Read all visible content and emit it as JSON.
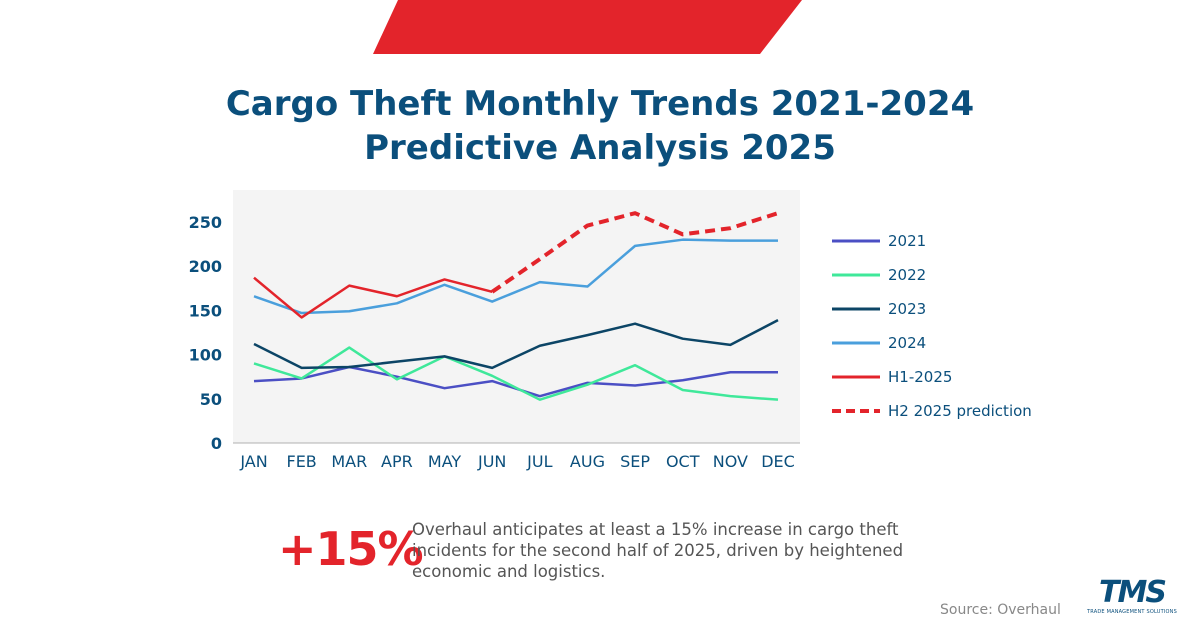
{
  "brand": {
    "accent": "#e3242b",
    "primary": "#0b4f7c"
  },
  "title_line1": "Cargo Theft Monthly Trends 2021-2024",
  "title_line2": "Predictive Analysis 2025",
  "chart_data": {
    "type": "line",
    "title": "Cargo Theft Monthly Trends 2021-2024 Predictive Analysis 2025",
    "xlabel": "",
    "ylabel": "",
    "categories": [
      "JAN",
      "FEB",
      "MAR",
      "APR",
      "MAY",
      "JUN",
      "JUL",
      "AUG",
      "SEP",
      "OCT",
      "NOV",
      "DEC"
    ],
    "yticks": [
      0,
      50,
      100,
      150,
      200,
      250
    ],
    "ylim": [
      0,
      250
    ],
    "grid": false,
    "legend_position": "right",
    "series": [
      {
        "name": "2021",
        "color": "#4b4fc4",
        "dashed": false,
        "values": [
          70,
          73,
          86,
          75,
          62,
          70,
          53,
          68,
          65,
          71,
          80,
          80
        ]
      },
      {
        "name": "2022",
        "color": "#3fe89a",
        "dashed": false,
        "values": [
          90,
          73,
          108,
          72,
          98,
          76,
          49,
          66,
          88,
          60,
          53,
          49
        ]
      },
      {
        "name": "2023",
        "color": "#0c4566",
        "dashed": false,
        "values": [
          112,
          85,
          86,
          92,
          98,
          85,
          110,
          122,
          135,
          118,
          111,
          139
        ]
      },
      {
        "name": "2024",
        "color": "#4a9fdc",
        "dashed": false,
        "values": [
          166,
          147,
          149,
          158,
          179,
          160,
          182,
          177,
          223,
          230,
          229,
          229
        ]
      },
      {
        "name": "H1-2025",
        "color": "#e3242b",
        "dashed": false,
        "values": [
          187,
          142,
          178,
          166,
          185,
          171,
          null,
          null,
          null,
          null,
          null,
          null
        ]
      },
      {
        "name": "H2 2025 prediction",
        "color": "#e3242b",
        "dashed": true,
        "values": [
          null,
          null,
          null,
          null,
          null,
          171,
          208,
          246,
          260,
          236,
          243,
          260
        ]
      }
    ]
  },
  "stat": {
    "value": "+15%",
    "text": "Overhaul anticipates at least a 15% increase in cargo theft incidents for the second half of 2025, driven by heightened economic and logistics."
  },
  "source": "Source: Overhaul",
  "logo": {
    "text": "TMS",
    "subtitle": "TRADE MANAGEMENT SOLUTIONS"
  }
}
